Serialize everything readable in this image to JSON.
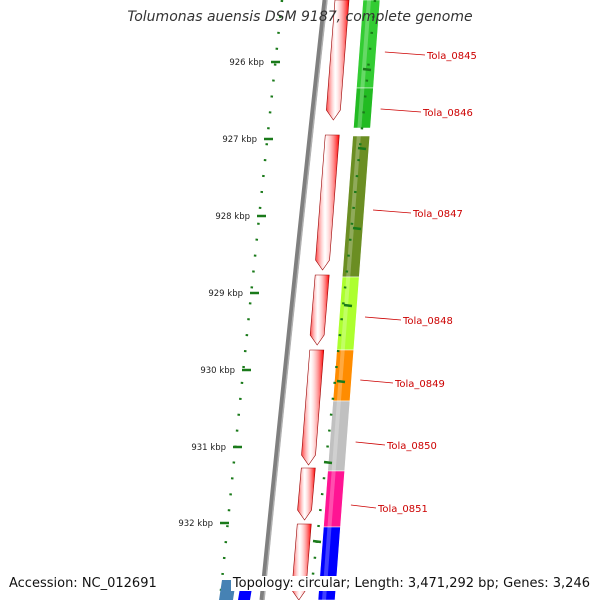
{
  "title": "Tolumonas auensis DSM 9187, complete genome",
  "footer": {
    "accession": "Accession: NC_012691",
    "topology": "Topology: circular; Length: 3,471,292 bp; Genes: 3,246"
  },
  "ruler": {
    "unit": "kbp",
    "ticks": [
      {
        "label": "926 kbp"
      },
      {
        "label": "927 kbp"
      },
      {
        "label": "928 kbp"
      },
      {
        "label": "929 kbp"
      },
      {
        "label": "930 kbp"
      },
      {
        "label": "931 kbp"
      },
      {
        "label": "932 kbp"
      }
    ]
  },
  "genes": [
    {
      "label": "Tola_0845",
      "color": "#33cc33"
    },
    {
      "label": "Tola_0846",
      "color": "#22bb22"
    },
    {
      "label": "Tola_0847",
      "color": "#6b8e23"
    },
    {
      "label": "Tola_0848",
      "color": "#adff2f"
    },
    {
      "label": "Tola_0849",
      "color": "#ff8c00"
    },
    {
      "label": "Tola_0850",
      "color": "#c0c0c0"
    },
    {
      "label": "Tola_0851",
      "color": "#ff1493"
    },
    {
      "label": "",
      "color": "#0000ff"
    }
  ],
  "colors": {
    "backbone": "#7f7f7f",
    "forward_cds": "#ff0000",
    "ruler_tick": "#1a7a1a",
    "label": "#cc0000"
  }
}
